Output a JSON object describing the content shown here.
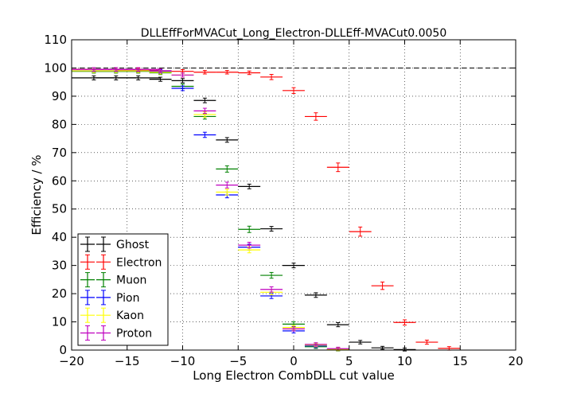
{
  "chart_data": {
    "type": "scatter",
    "title": "DLLEffForMVACut_Long_Electron-DLLEff-MVACut0.0050",
    "xlabel": "Long Electron CombDLL cut value",
    "ylabel": "Efficiency / %",
    "xlim": [
      -20,
      20
    ],
    "ylim": [
      0,
      110
    ],
    "xticks": [
      -20,
      -15,
      -10,
      -5,
      0,
      5,
      10,
      15,
      20
    ],
    "yticks": [
      0,
      10,
      20,
      30,
      40,
      50,
      60,
      70,
      80,
      90,
      100,
      110
    ],
    "grid": true,
    "reference_line_y": 100,
    "legend_position": "lower-left",
    "series": [
      {
        "name": "Ghost",
        "color": "#000000",
        "points": [
          {
            "x": -18,
            "y": 96.5,
            "xerr": 2,
            "yerr": 0.3
          },
          {
            "x": -16,
            "y": 96.5,
            "xerr": 2,
            "yerr": 0.3
          },
          {
            "x": -14,
            "y": 96.5,
            "xerr": 2,
            "yerr": 0.3
          },
          {
            "x": -12,
            "y": 96.0,
            "xerr": 1,
            "yerr": 0.3
          },
          {
            "x": -10,
            "y": 95.5,
            "xerr": 1,
            "yerr": 0.3
          },
          {
            "x": -8,
            "y": 88.5,
            "xerr": 1,
            "yerr": 0.4
          },
          {
            "x": -6,
            "y": 74.5,
            "xerr": 1,
            "yerr": 0.4
          },
          {
            "x": -4,
            "y": 58.0,
            "xerr": 1,
            "yerr": 0.4
          },
          {
            "x": -2,
            "y": 43.0,
            "xerr": 1,
            "yerr": 0.4
          },
          {
            "x": 0,
            "y": 30.0,
            "xerr": 1,
            "yerr": 0.4
          },
          {
            "x": 2,
            "y": 19.5,
            "xerr": 1,
            "yerr": 0.4
          },
          {
            "x": 4,
            "y": 9.0,
            "xerr": 1,
            "yerr": 0.3
          },
          {
            "x": 6,
            "y": 2.8,
            "xerr": 1,
            "yerr": 0.2
          },
          {
            "x": 8,
            "y": 0.8,
            "xerr": 1,
            "yerr": 0.1
          },
          {
            "x": 10,
            "y": 0.2,
            "xerr": 1,
            "yerr": 0.1
          }
        ]
      },
      {
        "name": "Electron",
        "color": "#ff0000",
        "points": [
          {
            "x": -18,
            "y": 99.5,
            "xerr": 2,
            "yerr": 0.2
          },
          {
            "x": -16,
            "y": 99.5,
            "xerr": 2,
            "yerr": 0.2
          },
          {
            "x": -14,
            "y": 99.3,
            "xerr": 2,
            "yerr": 0.2
          },
          {
            "x": -12,
            "y": 99.0,
            "xerr": 1,
            "yerr": 0.2
          },
          {
            "x": -10,
            "y": 98.8,
            "xerr": 1,
            "yerr": 0.2
          },
          {
            "x": -8,
            "y": 98.5,
            "xerr": 1,
            "yerr": 0.2
          },
          {
            "x": -6,
            "y": 98.5,
            "xerr": 1,
            "yerr": 0.2
          },
          {
            "x": -4,
            "y": 98.3,
            "xerr": 1,
            "yerr": 0.2
          },
          {
            "x": -2,
            "y": 96.8,
            "xerr": 1,
            "yerr": 0.5
          },
          {
            "x": 0,
            "y": 92.0,
            "xerr": 1,
            "yerr": 0.6
          },
          {
            "x": 2,
            "y": 82.8,
            "xerr": 1,
            "yerr": 0.9
          },
          {
            "x": 4,
            "y": 64.8,
            "xerr": 1,
            "yerr": 1.1
          },
          {
            "x": 6,
            "y": 42.0,
            "xerr": 1,
            "yerr": 1.2
          },
          {
            "x": 8,
            "y": 22.8,
            "xerr": 1,
            "yerr": 0.9
          },
          {
            "x": 10,
            "y": 9.8,
            "xerr": 1,
            "yerr": 0.5
          },
          {
            "x": 12,
            "y": 2.8,
            "xerr": 1,
            "yerr": 0.3
          },
          {
            "x": 14,
            "y": 0.6,
            "xerr": 1,
            "yerr": 0.2
          }
        ]
      },
      {
        "name": "Muon",
        "color": "#008000",
        "points": [
          {
            "x": -18,
            "y": 98.8,
            "xerr": 2,
            "yerr": 0.2
          },
          {
            "x": -16,
            "y": 98.8,
            "xerr": 2,
            "yerr": 0.2
          },
          {
            "x": -14,
            "y": 98.8,
            "xerr": 2,
            "yerr": 0.2
          },
          {
            "x": -12,
            "y": 98.3,
            "xerr": 1,
            "yerr": 0.2
          },
          {
            "x": -10,
            "y": 93.5,
            "xerr": 1,
            "yerr": 0.4
          },
          {
            "x": -8,
            "y": 82.8,
            "xerr": 1,
            "yerr": 0.5
          },
          {
            "x": -6,
            "y": 64.2,
            "xerr": 1,
            "yerr": 0.7
          },
          {
            "x": -4,
            "y": 42.8,
            "xerr": 1,
            "yerr": 0.7
          },
          {
            "x": -2,
            "y": 26.5,
            "xerr": 1,
            "yerr": 0.6
          },
          {
            "x": 0,
            "y": 9.2,
            "xerr": 1,
            "yerr": 0.4
          },
          {
            "x": 2,
            "y": 1.2,
            "xerr": 1,
            "yerr": 0.2
          },
          {
            "x": 4,
            "y": 0.2,
            "xerr": 1,
            "yerr": 0.1
          }
        ]
      },
      {
        "name": "Pion",
        "color": "#0000ff",
        "points": [
          {
            "x": -18,
            "y": 99.0,
            "xerr": 2,
            "yerr": 0.2
          },
          {
            "x": -16,
            "y": 99.0,
            "xerr": 2,
            "yerr": 0.2
          },
          {
            "x": -14,
            "y": 99.0,
            "xerr": 2,
            "yerr": 0.2
          },
          {
            "x": -12,
            "y": 98.8,
            "xerr": 1,
            "yerr": 0.2
          },
          {
            "x": -10,
            "y": 92.8,
            "xerr": 1,
            "yerr": 0.4
          },
          {
            "x": -8,
            "y": 76.3,
            "xerr": 1,
            "yerr": 0.5
          },
          {
            "x": -6,
            "y": 55.0,
            "xerr": 1,
            "yerr": 0.6
          },
          {
            "x": -4,
            "y": 36.5,
            "xerr": 1,
            "yerr": 0.6
          },
          {
            "x": -2,
            "y": 19.2,
            "xerr": 1,
            "yerr": 0.5
          },
          {
            "x": 0,
            "y": 6.8,
            "xerr": 1,
            "yerr": 0.3
          },
          {
            "x": 2,
            "y": 1.5,
            "xerr": 1,
            "yerr": 0.2
          },
          {
            "x": 4,
            "y": 0.3,
            "xerr": 1,
            "yerr": 0.1
          }
        ]
      },
      {
        "name": "Kaon",
        "color": "#ffff00",
        "points": [
          {
            "x": -18,
            "y": 99.0,
            "xerr": 2,
            "yerr": 0.2
          },
          {
            "x": -16,
            "y": 99.0,
            "xerr": 2,
            "yerr": 0.2
          },
          {
            "x": -14,
            "y": 99.0,
            "xerr": 2,
            "yerr": 0.2
          },
          {
            "x": -12,
            "y": 98.5,
            "xerr": 1,
            "yerr": 0.2
          },
          {
            "x": -10,
            "y": 97.5,
            "xerr": 1,
            "yerr": 0.3
          },
          {
            "x": -8,
            "y": 83.5,
            "xerr": 1,
            "yerr": 0.5
          },
          {
            "x": -6,
            "y": 56.0,
            "xerr": 1,
            "yerr": 0.6
          },
          {
            "x": -4,
            "y": 35.5,
            "xerr": 1,
            "yerr": 0.6
          },
          {
            "x": -2,
            "y": 20.5,
            "xerr": 1,
            "yerr": 0.5
          },
          {
            "x": 0,
            "y": 8.0,
            "xerr": 1,
            "yerr": 0.3
          },
          {
            "x": 2,
            "y": 1.8,
            "xerr": 1,
            "yerr": 0.2
          },
          {
            "x": 4,
            "y": 0.3,
            "xerr": 1,
            "yerr": 0.1
          }
        ]
      },
      {
        "name": "Proton",
        "color": "#bf00bf",
        "points": [
          {
            "x": -18,
            "y": 99.5,
            "xerr": 2,
            "yerr": 0.2
          },
          {
            "x": -16,
            "y": 99.5,
            "xerr": 2,
            "yerr": 0.2
          },
          {
            "x": -14,
            "y": 99.5,
            "xerr": 2,
            "yerr": 0.2
          },
          {
            "x": -12,
            "y": 99.0,
            "xerr": 1,
            "yerr": 0.2
          },
          {
            "x": -10,
            "y": 97.5,
            "xerr": 1,
            "yerr": 0.3
          },
          {
            "x": -8,
            "y": 84.8,
            "xerr": 1,
            "yerr": 0.5
          },
          {
            "x": -6,
            "y": 58.5,
            "xerr": 1,
            "yerr": 0.6
          },
          {
            "x": -4,
            "y": 37.2,
            "xerr": 1,
            "yerr": 0.6
          },
          {
            "x": -2,
            "y": 21.5,
            "xerr": 1,
            "yerr": 0.5
          },
          {
            "x": 0,
            "y": 7.5,
            "xerr": 1,
            "yerr": 0.3
          },
          {
            "x": 2,
            "y": 2.0,
            "xerr": 1,
            "yerr": 0.2
          },
          {
            "x": 4,
            "y": 0.5,
            "xerr": 1,
            "yerr": 0.1
          }
        ]
      }
    ]
  }
}
